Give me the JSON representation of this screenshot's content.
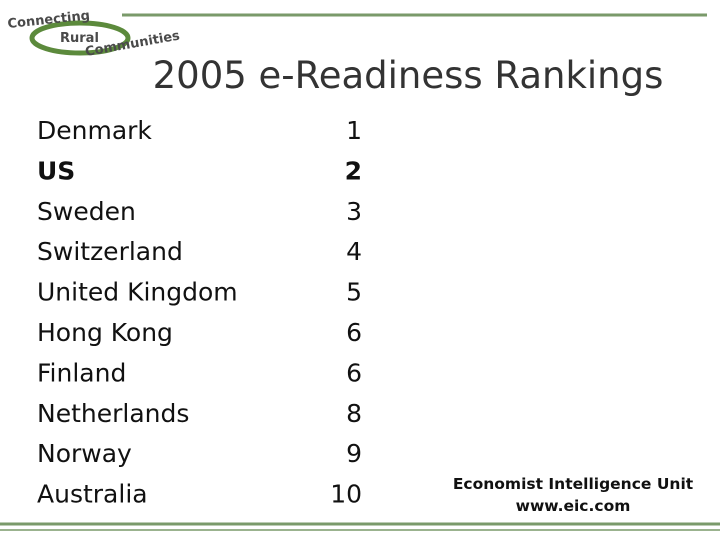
{
  "logo": {
    "line1": "Connecting",
    "line2": "Rural",
    "line3": "Communities"
  },
  "title": "2005 e-Readiness Rankings",
  "table": {
    "rows": [
      {
        "country": "Denmark",
        "rank": 1
      },
      {
        "country": "US",
        "rank": 2,
        "bold": true
      },
      {
        "country": "Sweden",
        "rank": 3
      },
      {
        "country": "Switzerland",
        "rank": 4
      },
      {
        "country": "United Kingdom",
        "rank": 5
      },
      {
        "country": "Hong Kong",
        "rank": 6
      },
      {
        "country": "Finland",
        "rank": 6
      },
      {
        "country": "Netherlands",
        "rank": 8
      },
      {
        "country": "Norway",
        "rank": 9
      },
      {
        "country": "Australia",
        "rank": 10
      }
    ]
  },
  "source": {
    "line1": "Economist Intelligence Unit",
    "line2": "www.eic.com"
  }
}
